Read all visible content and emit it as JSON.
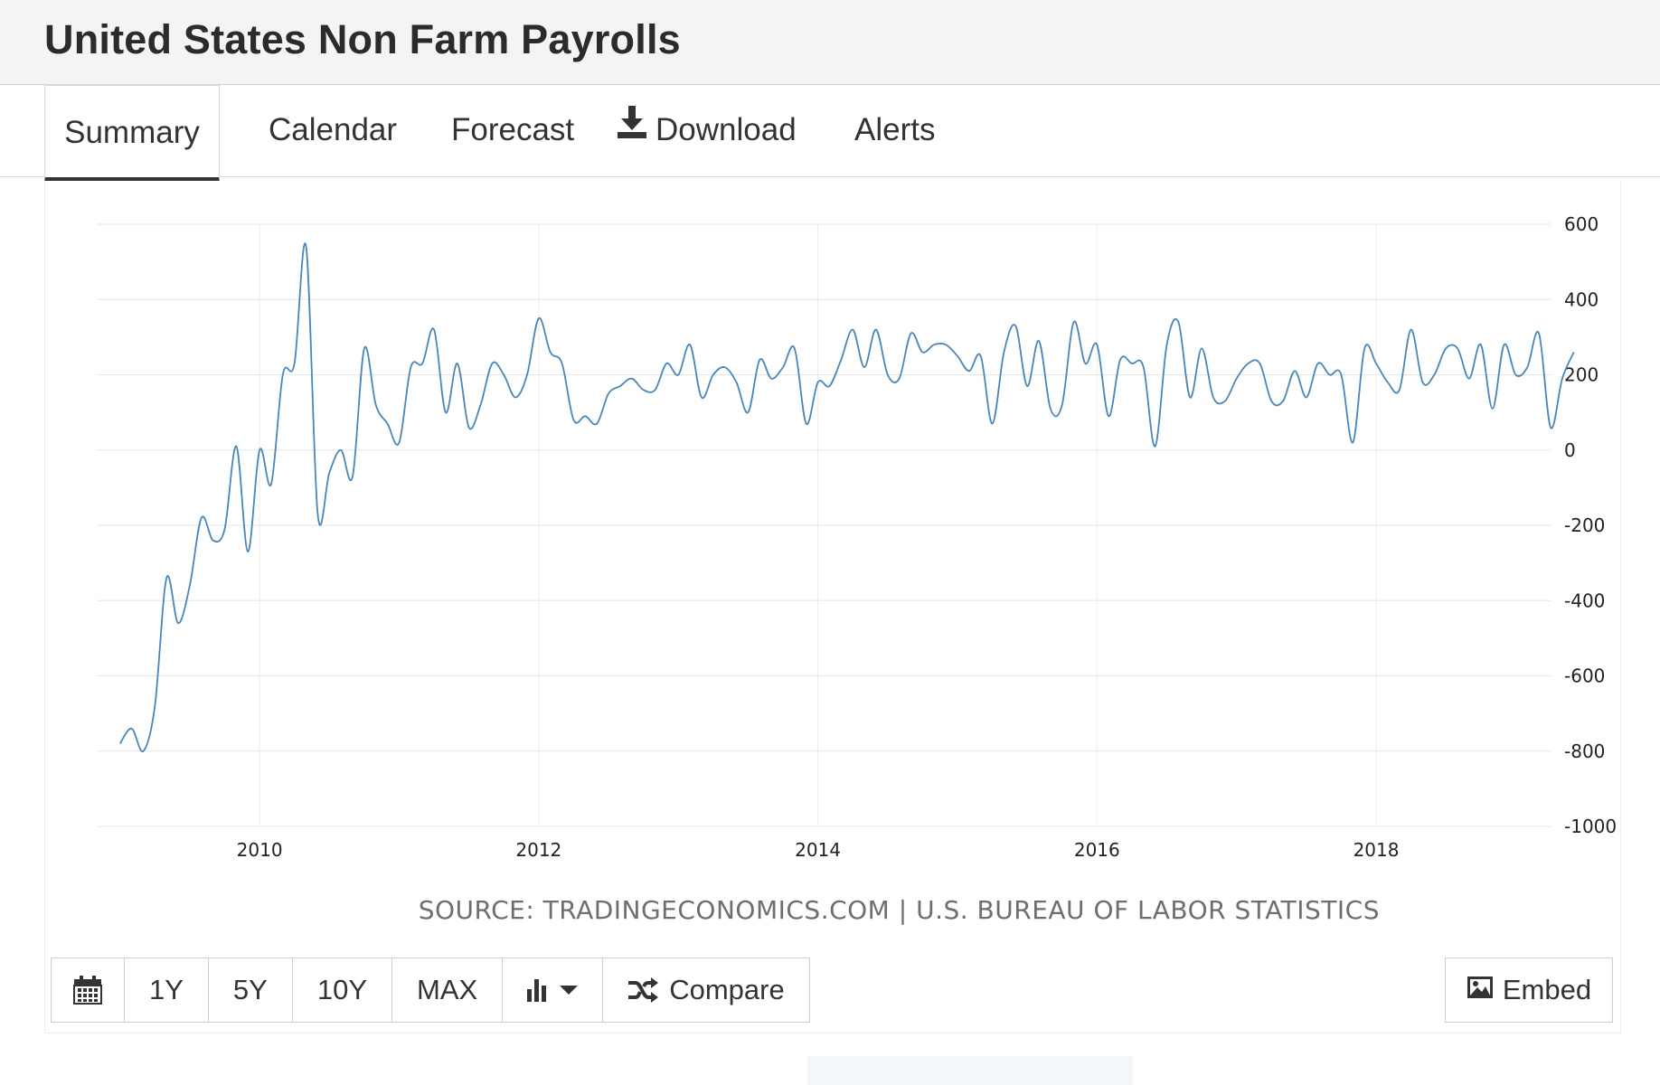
{
  "header": {
    "title": "United States Non Farm Payrolls"
  },
  "tabs": [
    {
      "label": "Summary",
      "active": true
    },
    {
      "label": "Calendar"
    },
    {
      "label": "Forecast"
    },
    {
      "label": "Download",
      "icon": "download-icon"
    },
    {
      "label": "Alerts"
    }
  ],
  "chart_data": {
    "type": "line",
    "title": "",
    "xlabel": "",
    "ylabel": "",
    "ylim": [
      -1000,
      600
    ],
    "xlim": [
      "2008-11",
      "2019-04"
    ],
    "y_ticks": [
      "600",
      "400",
      "200",
      "0",
      "-200",
      "-400",
      "-600",
      "-800",
      "-1000"
    ],
    "x_ticks": [
      "2010",
      "2012",
      "2014",
      "2016",
      "2018"
    ],
    "grid": true,
    "line_color": "#4a86b8",
    "series": [
      {
        "name": "",
        "start": "2009-01",
        "frequency": "monthly",
        "values": [
          -780,
          -740,
          -800,
          -680,
          -340,
          -460,
          -360,
          -180,
          -240,
          -210,
          10,
          -270,
          0,
          -90,
          200,
          230,
          540,
          -170,
          -60,
          0,
          -70,
          270,
          120,
          70,
          20,
          220,
          230,
          320,
          100,
          230,
          60,
          120,
          230,
          200,
          140,
          200,
          350,
          260,
          230,
          80,
          90,
          70,
          150,
          170,
          190,
          160,
          160,
          230,
          200,
          280,
          140,
          200,
          220,
          180,
          100,
          240,
          190,
          220,
          270,
          70,
          180,
          170,
          240,
          320,
          220,
          320,
          200,
          190,
          310,
          260,
          280,
          280,
          250,
          210,
          250,
          70,
          260,
          330,
          170,
          290,
          110,
          120,
          340,
          230,
          280,
          90,
          240,
          230,
          220,
          10,
          280,
          340,
          140,
          270,
          140,
          130,
          190,
          230,
          230,
          130,
          130,
          210,
          140,
          230,
          200,
          200,
          20,
          270,
          230,
          180,
          160,
          320,
          180,
          200,
          270,
          270,
          190,
          280,
          110,
          280,
          200,
          220,
          310,
          60,
          190,
          260
        ]
      }
    ]
  },
  "source_text": "SOURCE: TRADINGECONOMICS.COM | U.S. BUREAU OF LABOR STATISTICS",
  "toolbar": {
    "calendar_icon": "calendar-icon",
    "ranges": [
      "1Y",
      "5Y",
      "10Y",
      "MAX"
    ],
    "chart_type_icon": "bar-chart-icon",
    "compare_label": "Compare",
    "compare_icon": "shuffle-icon",
    "embed_label": "Embed",
    "embed_icon": "image-icon"
  }
}
